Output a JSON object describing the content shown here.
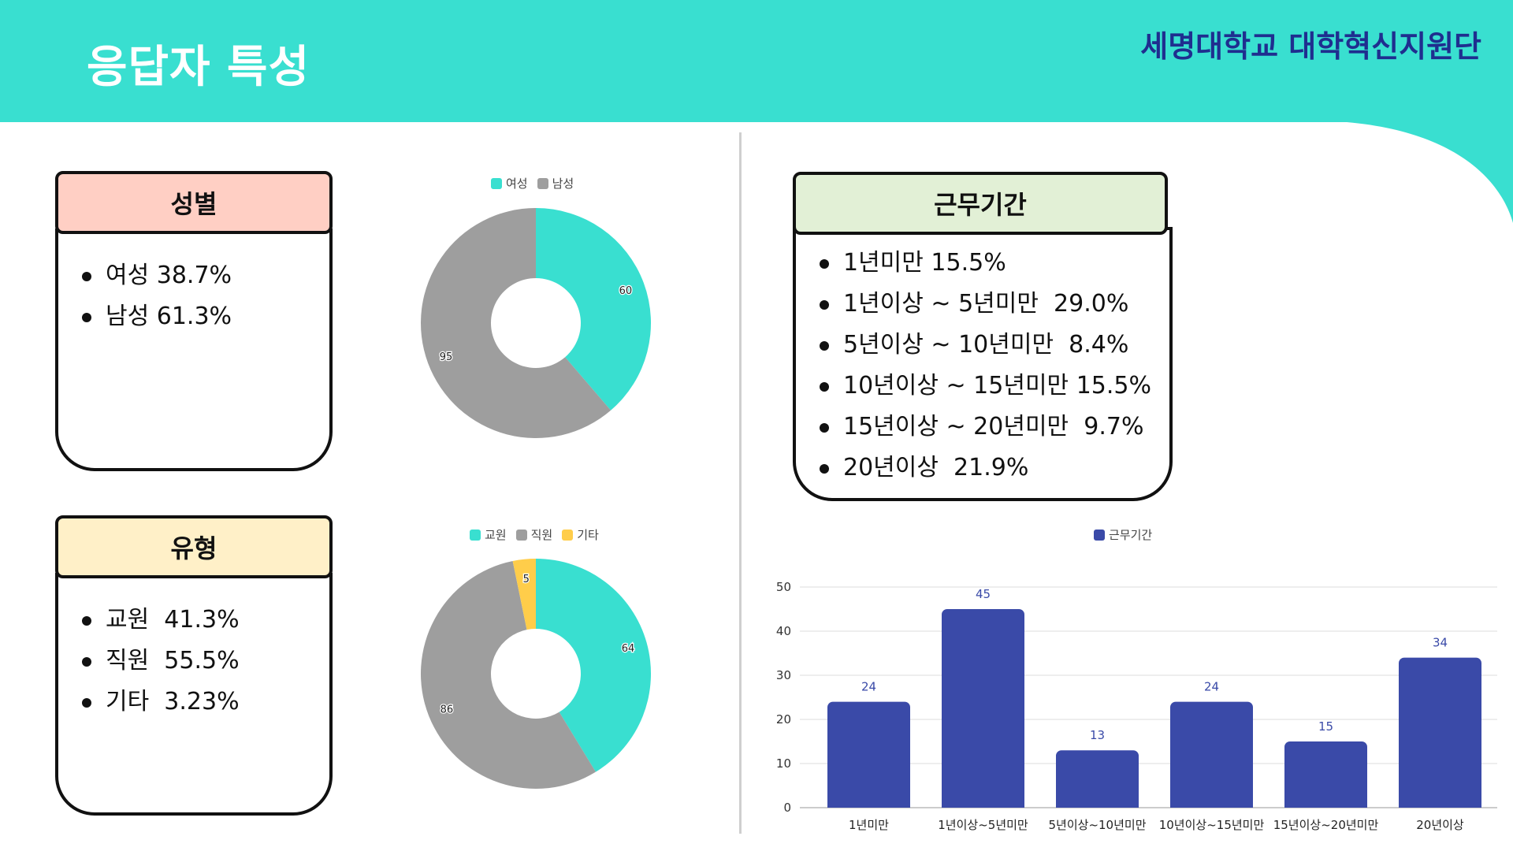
{
  "header": {
    "title": "응답자 특성",
    "organization": "세명대학교 대학혁신지원단",
    "bg_color": "#39dfd0",
    "org_color": "#1f2e8f"
  },
  "gender": {
    "heading": "성별",
    "heading_bg": "#ffcfc4",
    "items": [
      "여성 38.7%",
      "남성 61.3%"
    ]
  },
  "type": {
    "heading": "유형",
    "heading_bg": "#fff0c8",
    "items": [
      "교원  41.3%",
      "직원  55.5%",
      "기타  3.23%"
    ]
  },
  "tenure": {
    "heading": "근무기간",
    "heading_bg": "#e2f0d6",
    "items": [
      "1년미만 15.5%",
      "1년이상 ~ 5년미만  29.0%",
      "5년이상 ~ 10년미만  8.4%",
      "10년이상 ~ 15년미만 15.5%",
      "15년이상 ~ 20년미만  9.7%",
      "20년이상  21.9%"
    ]
  },
  "chart_data": [
    {
      "type": "pie",
      "donut": true,
      "categories": [
        "여성",
        "남성"
      ],
      "values": [
        60,
        95
      ],
      "colors": [
        "#39dfd0",
        "#9e9e9e"
      ],
      "legend": "top"
    },
    {
      "type": "pie",
      "donut": true,
      "categories": [
        "교원",
        "직원",
        "기타"
      ],
      "values": [
        64,
        86,
        5
      ],
      "colors": [
        "#39dfd0",
        "#9e9e9e",
        "#ffcd4a"
      ],
      "legend": "top"
    },
    {
      "type": "bar",
      "series": [
        {
          "name": "근무기간",
          "values": [
            24,
            45,
            13,
            24,
            15,
            34
          ]
        }
      ],
      "categories": [
        "1년미만",
        "1년이상~5년미만",
        "5년이상~10년미만",
        "10년이상~15년미만",
        "15년이상~20년미만",
        "20년이상"
      ],
      "ylim": [
        0,
        50
      ],
      "yticks": [
        0,
        10,
        20,
        30,
        40,
        50
      ],
      "color": "#3a4aa8",
      "grid": true,
      "legend": "top"
    }
  ]
}
